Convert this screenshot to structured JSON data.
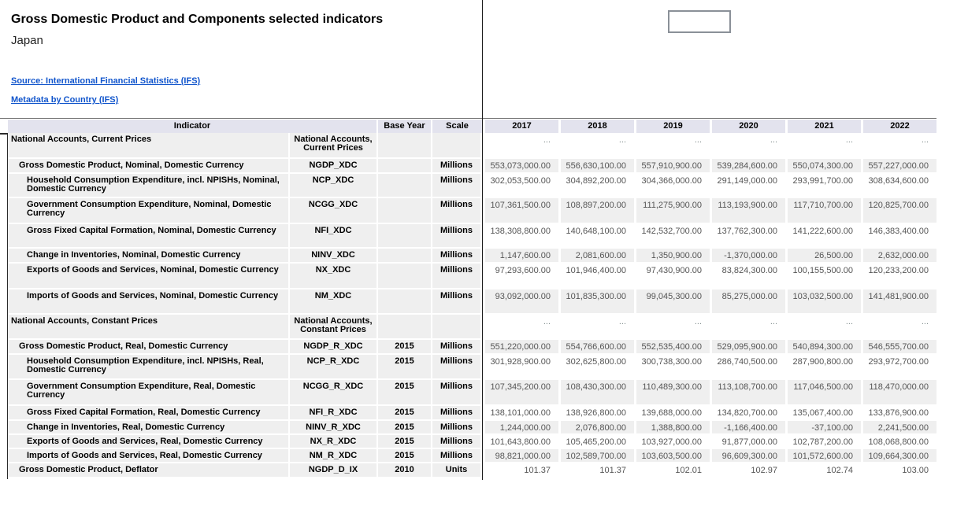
{
  "page": {
    "title": "Gross Domestic Product and Components selected indicators",
    "subtitle": "Japan",
    "links": {
      "source": "Source: International Financial Statistics (IFS)",
      "metadata": "Metadata by Country (IFS)"
    }
  },
  "controls": {
    "year_selector_value": ""
  },
  "colors": {
    "link": "#1155cc",
    "table_header_bg": "#e3e3ee",
    "row_stripe": "#efefef",
    "value_text": "#555555",
    "ellipsis_text": "#7f8c8c"
  },
  "table": {
    "headers": {
      "indicator": "Indicator",
      "base_year": "Base Year",
      "scale": "Scale",
      "years": [
        "2017",
        "2018",
        "2019",
        "2020",
        "2021",
        "2022"
      ]
    },
    "rows": [
      {
        "section": true,
        "level": 0,
        "indicator": "National Accounts, Current Prices",
        "code": "National Accounts, Current Prices",
        "base_year": "",
        "scale": "",
        "values": [
          "...",
          "...",
          "...",
          "...",
          "...",
          "..."
        ]
      },
      {
        "section": false,
        "level": 1,
        "indicator": "Gross Domestic Product, Nominal, Domestic Currency",
        "code": "NGDP_XDC",
        "base_year": "",
        "scale": "Millions",
        "values": [
          "553,073,000.00",
          "556,630,100.00",
          "557,910,900.00",
          "539,284,600.00",
          "550,074,300.00",
          "557,227,000.00"
        ]
      },
      {
        "section": false,
        "level": 2,
        "indicator": "Household Consumption Expenditure, incl. NPISHs, Nominal, Domestic Currency",
        "code": "NCP_XDC",
        "base_year": "",
        "scale": "Millions",
        "values": [
          "302,053,500.00",
          "304,892,200.00",
          "304,366,000.00",
          "291,149,000.00",
          "293,991,700.00",
          "308,634,600.00"
        ]
      },
      {
        "section": false,
        "level": 2,
        "indicator": "Government Consumption Expenditure, Nominal, Domestic Currency",
        "code": "NCGG_XDC",
        "base_year": "",
        "scale": "Millions",
        "values": [
          "107,361,500.00",
          "108,897,200.00",
          "111,275,900.00",
          "113,193,900.00",
          "117,710,700.00",
          "120,825,700.00"
        ]
      },
      {
        "section": false,
        "level": 2,
        "indicator": "Gross Fixed Capital Formation, Nominal, Domestic Currency",
        "code": "NFI_XDC",
        "base_year": "",
        "scale": "Millions",
        "values": [
          "138,308,800.00",
          "140,648,100.00",
          "142,532,700.00",
          "137,762,300.00",
          "141,222,600.00",
          "146,383,400.00"
        ]
      },
      {
        "section": false,
        "level": 2,
        "indicator": "Change in Inventories, Nominal, Domestic Currency",
        "code": "NINV_XDC",
        "base_year": "",
        "scale": "Millions",
        "values": [
          "1,147,600.00",
          "2,081,600.00",
          "1,350,900.00",
          "-1,370,000.00",
          "26,500.00",
          "2,632,000.00"
        ]
      },
      {
        "section": false,
        "level": 2,
        "indicator": "Exports of Goods and Services, Nominal, Domestic Currency",
        "code": "NX_XDC",
        "base_year": "",
        "scale": "Millions",
        "values": [
          "97,293,600.00",
          "101,946,400.00",
          "97,430,900.00",
          "83,824,300.00",
          "100,155,500.00",
          "120,233,200.00"
        ]
      },
      {
        "section": false,
        "level": 2,
        "indicator": "Imports of Goods and Services, Nominal, Domestic Currency",
        "code": "NM_XDC",
        "base_year": "",
        "scale": "Millions",
        "values": [
          "93,092,000.00",
          "101,835,300.00",
          "99,045,300.00",
          "85,275,000.00",
          "103,032,500.00",
          "141,481,900.00"
        ]
      },
      {
        "section": true,
        "level": 0,
        "indicator": "National Accounts, Constant Prices",
        "code": "National Accounts, Constant Prices",
        "base_year": "",
        "scale": "",
        "values": [
          "...",
          "...",
          "...",
          "...",
          "...",
          "..."
        ]
      },
      {
        "section": false,
        "level": 1,
        "indicator": "Gross Domestic Product, Real, Domestic Currency",
        "code": "NGDP_R_XDC",
        "base_year": "2015",
        "scale": "Millions",
        "values": [
          "551,220,000.00",
          "554,766,600.00",
          "552,535,400.00",
          "529,095,900.00",
          "540,894,300.00",
          "546,555,700.00"
        ]
      },
      {
        "section": false,
        "level": 2,
        "indicator": "Household Consumption Expenditure, incl. NPISHs, Real, Domestic Currency",
        "code": "NCP_R_XDC",
        "base_year": "2015",
        "scale": "Millions",
        "values": [
          "301,928,900.00",
          "302,625,800.00",
          "300,738,300.00",
          "286,740,500.00",
          "287,900,800.00",
          "293,972,700.00"
        ]
      },
      {
        "section": false,
        "level": 2,
        "indicator": "Government Consumption Expenditure, Real, Domestic Currency",
        "code": "NCGG_R_XDC",
        "base_year": "2015",
        "scale": "Millions",
        "values": [
          "107,345,200.00",
          "108,430,300.00",
          "110,489,300.00",
          "113,108,700.00",
          "117,046,500.00",
          "118,470,000.00"
        ]
      },
      {
        "section": false,
        "level": 2,
        "indicator": "Gross Fixed Capital Formation, Real, Domestic Currency",
        "code": "NFI_R_XDC",
        "base_year": "2015",
        "scale": "Millions",
        "values": [
          "138,101,000.00",
          "138,926,800.00",
          "139,688,000.00",
          "134,820,700.00",
          "135,067,400.00",
          "133,876,900.00"
        ]
      },
      {
        "section": false,
        "level": 2,
        "indicator": "Change in Inventories, Real, Domestic Currency",
        "code": "NINV_R_XDC",
        "base_year": "2015",
        "scale": "Millions",
        "values": [
          "1,244,000.00",
          "2,076,800.00",
          "1,388,800.00",
          "-1,166,400.00",
          "-37,100.00",
          "2,241,500.00"
        ]
      },
      {
        "section": false,
        "level": 2,
        "indicator": "Exports of Goods and Services, Real, Domestic Currency",
        "code": "NX_R_XDC",
        "base_year": "2015",
        "scale": "Millions",
        "values": [
          "101,643,800.00",
          "105,465,200.00",
          "103,927,000.00",
          "91,877,000.00",
          "102,787,200.00",
          "108,068,800.00"
        ]
      },
      {
        "section": false,
        "level": 2,
        "indicator": "Imports of Goods and Services, Real, Domestic Currency",
        "code": "NM_R_XDC",
        "base_year": "2015",
        "scale": "Millions",
        "values": [
          "98,821,000.00",
          "102,589,700.00",
          "103,603,500.00",
          "96,609,300.00",
          "101,572,600.00",
          "109,664,300.00"
        ]
      },
      {
        "section": false,
        "level": 1,
        "indicator": "Gross Domestic Product, Deflator",
        "code": "NGDP_D_IX",
        "base_year": "2010",
        "scale": "Units",
        "values": [
          "101.37",
          "101.37",
          "102.01",
          "102.97",
          "102.74",
          "103.00"
        ]
      }
    ]
  }
}
